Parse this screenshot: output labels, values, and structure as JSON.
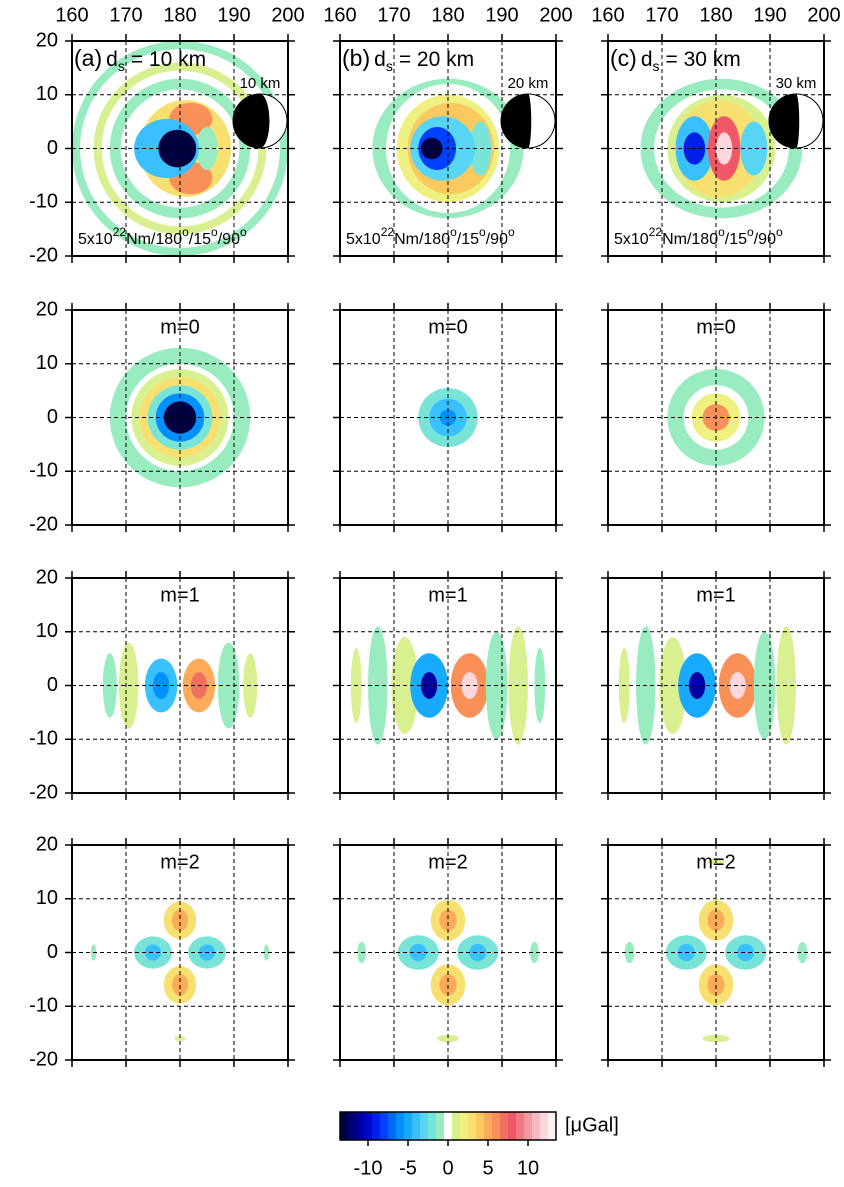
{
  "chart_data": [
    {
      "type": "heatmap",
      "label": "(a)",
      "title_var": "d",
      "title_sub": "s",
      "title_rest": "= 10 km",
      "depth_label": "10 km",
      "mechanism": [
        "5x10",
        "22",
        "Nm/180",
        "o",
        "/15",
        "o",
        "/90",
        "o"
      ],
      "xlim": [
        160,
        200
      ],
      "xticks": [
        160,
        170,
        180,
        190,
        200
      ],
      "ylim": [
        -20,
        20
      ],
      "yticks": [
        -20,
        -10,
        0,
        10,
        20
      ],
      "grid": true,
      "xtick_labels": true,
      "ytick_labels": true,
      "features": [
        {
          "x": 180,
          "y": 0,
          "rx": 20,
          "ry": 20,
          "value": -1
        },
        {
          "x": 180,
          "y": 0,
          "rx": 18.5,
          "ry": 18.5,
          "value": 0
        },
        {
          "x": 180,
          "y": 0,
          "rx": 16,
          "ry": 16,
          "value": 1
        },
        {
          "x": 180,
          "y": 0,
          "rx": 14.5,
          "ry": 14.5,
          "value": 0
        },
        {
          "x": 180,
          "y": 0,
          "rx": 13,
          "ry": 13,
          "value": -1
        },
        {
          "x": 180,
          "y": 0,
          "rx": 11,
          "ry": 11,
          "value": 0
        },
        {
          "x": 181,
          "y": 0,
          "rx": 8.5,
          "ry": 9,
          "value": 3
        },
        {
          "x": 182,
          "y": 5.5,
          "rx": 4,
          "ry": 3,
          "value": 6
        },
        {
          "x": 182,
          "y": -5.5,
          "rx": 4,
          "ry": 3,
          "value": 6
        },
        {
          "x": 185,
          "y": 0,
          "rx": 2,
          "ry": 4,
          "value": -1
        },
        {
          "x": 177.5,
          "y": 0,
          "rx": 6,
          "ry": 5.5,
          "value": -4
        },
        {
          "x": 179.5,
          "y": 0,
          "rx": 3.5,
          "ry": 3.5,
          "value": -13
        }
      ]
    },
    {
      "type": "heatmap",
      "label": "(b)",
      "title_var": "d",
      "title_sub": "s",
      "title_rest": "= 20 km",
      "depth_label": "20 km",
      "mechanism": [
        "5x10",
        "22",
        "Nm/180",
        "o",
        "/15",
        "o",
        "/90",
        "o"
      ],
      "xlim": [
        160,
        200
      ],
      "xticks": [
        160,
        170,
        180,
        190,
        200
      ],
      "ylim": [
        -20,
        20
      ],
      "yticks": [
        -20,
        -10,
        0,
        10,
        20
      ],
      "grid": true,
      "xtick_labels": true,
      "ytick_labels": false,
      "features": [
        {
          "x": 180,
          "y": 0,
          "rx": 14,
          "ry": 13,
          "value": -1
        },
        {
          "x": 180,
          "y": 0,
          "rx": 11.5,
          "ry": 12,
          "value": 0
        },
        {
          "x": 180,
          "y": 0,
          "rx": 9.5,
          "ry": 10,
          "value": 2
        },
        {
          "x": 180.5,
          "y": 0,
          "rx": 8,
          "ry": 8.5,
          "value": 4
        },
        {
          "x": 186,
          "y": 0,
          "rx": 2,
          "ry": 5,
          "value": -2
        },
        {
          "x": 179,
          "y": 0,
          "rx": 6,
          "ry": 6,
          "value": -3
        },
        {
          "x": 178,
          "y": 0,
          "rx": 3.5,
          "ry": 4,
          "value": -8
        },
        {
          "x": 177,
          "y": 0,
          "rx": 2,
          "ry": 2,
          "value": -13
        }
      ]
    },
    {
      "type": "heatmap",
      "label": "(c)",
      "title_var": "d",
      "title_sub": "s",
      "title_rest": "= 30 km",
      "depth_label": "30 km",
      "mechanism": [
        "5x10",
        "22",
        "Nm/180",
        "o",
        "/15",
        "o",
        "/90",
        "o"
      ],
      "xlim": [
        160,
        200
      ],
      "xticks": [
        160,
        170,
        180,
        190,
        200
      ],
      "ylim": [
        -20,
        20
      ],
      "yticks": [
        -20,
        -10,
        0,
        10,
        20
      ],
      "grid": true,
      "xtick_labels": true,
      "ytick_labels": false,
      "features": [
        {
          "x": 181,
          "y": 0,
          "rx": 15,
          "ry": 13,
          "value": -1
        },
        {
          "x": 181,
          "y": 0,
          "rx": 12.5,
          "ry": 11,
          "value": 0
        },
        {
          "x": 181,
          "y": 0,
          "rx": 10,
          "ry": 10,
          "value": 1
        },
        {
          "x": 180.5,
          "y": 0,
          "rx": 8,
          "ry": 9,
          "value": 3
        },
        {
          "x": 187,
          "y": 0,
          "rx": 2.5,
          "ry": 5,
          "value": -3
        },
        {
          "x": 176,
          "y": 0,
          "rx": 3.5,
          "ry": 6,
          "value": -4
        },
        {
          "x": 176,
          "y": 0,
          "rx": 2,
          "ry": 3,
          "value": -9
        },
        {
          "x": 181.5,
          "y": 0,
          "rx": 3,
          "ry": 6,
          "value": 8
        },
        {
          "x": 181.5,
          "y": 0,
          "rx": 1.5,
          "ry": 3,
          "value": 12
        }
      ]
    },
    {
      "type": "heatmap",
      "title": "m=0",
      "xlim": [
        160,
        200
      ],
      "xticks": [
        160,
        170,
        180,
        190,
        200
      ],
      "ylim": [
        -20,
        20
      ],
      "yticks": [
        -20,
        -10,
        0,
        10,
        20
      ],
      "grid": true,
      "xtick_labels": false,
      "ytick_labels": true,
      "features": [
        {
          "x": 180,
          "y": 0,
          "rx": 13,
          "ry": 13,
          "value": -1
        },
        {
          "x": 180,
          "y": 0,
          "rx": 10,
          "ry": 10,
          "value": 0
        },
        {
          "x": 180,
          "y": 0,
          "rx": 9,
          "ry": 9,
          "value": 1
        },
        {
          "x": 180,
          "y": 0,
          "rx": 7.5,
          "ry": 7.5,
          "value": 3
        },
        {
          "x": 180,
          "y": 0,
          "rx": 6,
          "ry": 6,
          "value": -2
        },
        {
          "x": 180,
          "y": 0,
          "rx": 4.5,
          "ry": 4.5,
          "value": -6
        },
        {
          "x": 180,
          "y": 0,
          "rx": 3,
          "ry": 3,
          "value": -13
        }
      ]
    },
    {
      "type": "heatmap",
      "title": "m=0",
      "xlim": [
        160,
        200
      ],
      "xticks": [
        160,
        170,
        180,
        190,
        200
      ],
      "ylim": [
        -20,
        20
      ],
      "yticks": [
        -20,
        -10,
        0,
        10,
        20
      ],
      "grid": true,
      "xtick_labels": false,
      "ytick_labels": false,
      "features": [
        {
          "x": 180,
          "y": 0,
          "rx": 5.5,
          "ry": 5.5,
          "value": -2
        },
        {
          "x": 180,
          "y": 0,
          "rx": 3.5,
          "ry": 3.5,
          "value": -4
        },
        {
          "x": 180,
          "y": 0,
          "rx": 1.5,
          "ry": 1.5,
          "value": -6
        }
      ]
    },
    {
      "type": "heatmap",
      "title": "m=0",
      "xlim": [
        160,
        200
      ],
      "xticks": [
        160,
        170,
        180,
        190,
        200
      ],
      "ylim": [
        -20,
        20
      ],
      "yticks": [
        -20,
        -10,
        0,
        10,
        20
      ],
      "grid": true,
      "xtick_labels": false,
      "ytick_labels": false,
      "features": [
        {
          "x": 180,
          "y": 0,
          "rx": 9,
          "ry": 9,
          "value": -1
        },
        {
          "x": 180,
          "y": 0,
          "rx": 6,
          "ry": 6,
          "value": 0
        },
        {
          "x": 180,
          "y": 0,
          "rx": 4.5,
          "ry": 4.5,
          "value": 2
        },
        {
          "x": 180,
          "y": 0,
          "rx": 2.5,
          "ry": 2.5,
          "value": 6
        }
      ]
    },
    {
      "type": "heatmap",
      "title": "m=1",
      "xlim": [
        160,
        200
      ],
      "xticks": [
        160,
        170,
        180,
        190,
        200
      ],
      "ylim": [
        -20,
        20
      ],
      "yticks": [
        -20,
        -10,
        0,
        10,
        20
      ],
      "grid": true,
      "xtick_labels": false,
      "ytick_labels": true,
      "features": [
        {
          "x": 167,
          "y": 0,
          "rx": 1.3,
          "ry": 6,
          "value": -1
        },
        {
          "x": 170.5,
          "y": 0,
          "rx": 1.8,
          "ry": 8,
          "value": 1
        },
        {
          "x": 176.5,
          "y": 0,
          "rx": 3,
          "ry": 5,
          "value": -4
        },
        {
          "x": 176.5,
          "y": 0,
          "rx": 1.5,
          "ry": 2.5,
          "value": -6
        },
        {
          "x": 183.5,
          "y": 0,
          "rx": 3,
          "ry": 5,
          "value": 5
        },
        {
          "x": 183.5,
          "y": 0,
          "rx": 1.5,
          "ry": 2.5,
          "value": 7
        },
        {
          "x": 189,
          "y": 0,
          "rx": 2,
          "ry": 8,
          "value": -1
        },
        {
          "x": 193,
          "y": 0,
          "rx": 1.3,
          "ry": 6,
          "value": 1
        }
      ]
    },
    {
      "type": "heatmap",
      "title": "m=1",
      "xlim": [
        160,
        200
      ],
      "xticks": [
        160,
        170,
        180,
        190,
        200
      ],
      "ylim": [
        -20,
        20
      ],
      "yticks": [
        -20,
        -10,
        0,
        10,
        20
      ],
      "grid": true,
      "xtick_labels": false,
      "ytick_labels": false,
      "features": [
        {
          "x": 163,
          "y": 0,
          "rx": 1,
          "ry": 7,
          "value": 1
        },
        {
          "x": 167,
          "y": 0,
          "rx": 1.8,
          "ry": 11,
          "value": -1
        },
        {
          "x": 172,
          "y": 0,
          "rx": 2.5,
          "ry": 9,
          "value": 1
        },
        {
          "x": 176.5,
          "y": 0,
          "rx": 3.5,
          "ry": 6,
          "value": -5
        },
        {
          "x": 176.5,
          "y": 0,
          "rx": 1.5,
          "ry": 2.5,
          "value": -11
        },
        {
          "x": 184,
          "y": 0,
          "rx": 3.5,
          "ry": 6,
          "value": 6
        },
        {
          "x": 184,
          "y": 0,
          "rx": 1.5,
          "ry": 2.5,
          "value": 12
        },
        {
          "x": 189,
          "y": 0,
          "rx": 2,
          "ry": 10,
          "value": -1
        },
        {
          "x": 193,
          "y": 0,
          "rx": 1.8,
          "ry": 11,
          "value": 1
        },
        {
          "x": 197,
          "y": 0,
          "rx": 1,
          "ry": 7,
          "value": -1
        }
      ]
    },
    {
      "type": "heatmap",
      "title": "m=1",
      "xlim": [
        160,
        200
      ],
      "xticks": [
        160,
        170,
        180,
        190,
        200
      ],
      "ylim": [
        -20,
        20
      ],
      "yticks": [
        -20,
        -10,
        0,
        10,
        20
      ],
      "grid": true,
      "xtick_labels": false,
      "ytick_labels": false,
      "features": [
        {
          "x": 163,
          "y": 0,
          "rx": 1,
          "ry": 7,
          "value": 1
        },
        {
          "x": 167,
          "y": 0,
          "rx": 1.8,
          "ry": 11,
          "value": -1
        },
        {
          "x": 172,
          "y": 0,
          "rx": 2.5,
          "ry": 9,
          "value": 1
        },
        {
          "x": 176.5,
          "y": 0,
          "rx": 3.5,
          "ry": 6,
          "value": -5
        },
        {
          "x": 176.5,
          "y": 0,
          "rx": 1.5,
          "ry": 2.5,
          "value": -11
        },
        {
          "x": 184,
          "y": 0,
          "rx": 3.5,
          "ry": 6,
          "value": 6
        },
        {
          "x": 184,
          "y": 0,
          "rx": 1.5,
          "ry": 2.5,
          "value": 12
        },
        {
          "x": 189,
          "y": 0,
          "rx": 2,
          "ry": 10,
          "value": -1
        },
        {
          "x": 193,
          "y": 0,
          "rx": 1.8,
          "ry": 11,
          "value": 1
        }
      ]
    },
    {
      "type": "heatmap",
      "title": "m=2",
      "xlim": [
        160,
        200
      ],
      "xticks": [
        160,
        170,
        180,
        190,
        200
      ],
      "ylim": [
        -20,
        20
      ],
      "yticks": [
        -20,
        -10,
        0,
        10,
        20
      ],
      "grid": true,
      "xtick_labels": false,
      "ytick_labels": true,
      "features": [
        {
          "x": 180,
          "y": 6,
          "rx": 3,
          "ry": 3.5,
          "value": 3
        },
        {
          "x": 180,
          "y": 6,
          "rx": 1.5,
          "ry": 2,
          "value": 5
        },
        {
          "x": 180,
          "y": -6,
          "rx": 3,
          "ry": 3.5,
          "value": 3
        },
        {
          "x": 180,
          "y": -6,
          "rx": 1.5,
          "ry": 2,
          "value": 5
        },
        {
          "x": 175,
          "y": 0,
          "rx": 3.5,
          "ry": 3,
          "value": -2
        },
        {
          "x": 175,
          "y": 0,
          "rx": 1.5,
          "ry": 1.5,
          "value": -4
        },
        {
          "x": 185,
          "y": 0,
          "rx": 3.5,
          "ry": 3,
          "value": -2
        },
        {
          "x": 185,
          "y": 0,
          "rx": 1.5,
          "ry": 1.5,
          "value": -4
        },
        {
          "x": 164,
          "y": 0,
          "rx": 0.5,
          "ry": 1.5,
          "value": -1
        },
        {
          "x": 196,
          "y": 0,
          "rx": 0.5,
          "ry": 1.5,
          "value": -1
        },
        {
          "x": 180,
          "y": -16,
          "rx": 1,
          "ry": 0.5,
          "value": 1
        }
      ]
    },
    {
      "type": "heatmap",
      "title": "m=2",
      "xlim": [
        160,
        200
      ],
      "xticks": [
        160,
        170,
        180,
        190,
        200
      ],
      "ylim": [
        -20,
        20
      ],
      "yticks": [
        -20,
        -10,
        0,
        10,
        20
      ],
      "grid": true,
      "xtick_labels": false,
      "ytick_labels": false,
      "features": [
        {
          "x": 180,
          "y": 6,
          "rx": 3.2,
          "ry": 3.8,
          "value": 3
        },
        {
          "x": 180,
          "y": 6,
          "rx": 1.6,
          "ry": 2,
          "value": 5
        },
        {
          "x": 180,
          "y": -6,
          "rx": 3.2,
          "ry": 3.8,
          "value": 3
        },
        {
          "x": 180,
          "y": -6,
          "rx": 1.6,
          "ry": 2,
          "value": 5
        },
        {
          "x": 174.5,
          "y": 0,
          "rx": 3.8,
          "ry": 3.2,
          "value": -2
        },
        {
          "x": 174.5,
          "y": 0,
          "rx": 1.6,
          "ry": 1.6,
          "value": -4
        },
        {
          "x": 185.5,
          "y": 0,
          "rx": 3.8,
          "ry": 3.2,
          "value": -2
        },
        {
          "x": 185.5,
          "y": 0,
          "rx": 1.6,
          "ry": 1.6,
          "value": -4
        },
        {
          "x": 164,
          "y": 0,
          "rx": 0.8,
          "ry": 2,
          "value": -1
        },
        {
          "x": 196,
          "y": 0,
          "rx": 0.8,
          "ry": 2,
          "value": -1
        },
        {
          "x": 180,
          "y": -16,
          "rx": 2,
          "ry": 0.7,
          "value": 1
        }
      ]
    },
    {
      "type": "heatmap",
      "title": "m=2",
      "xlim": [
        160,
        200
      ],
      "xticks": [
        160,
        170,
        180,
        190,
        200
      ],
      "ylim": [
        -20,
        20
      ],
      "yticks": [
        -20,
        -10,
        0,
        10,
        20
      ],
      "grid": true,
      "xtick_labels": false,
      "ytick_labels": false,
      "features": [
        {
          "x": 180,
          "y": 6,
          "rx": 3.2,
          "ry": 3.8,
          "value": 3
        },
        {
          "x": 180,
          "y": 6,
          "rx": 1.6,
          "ry": 2,
          "value": 5
        },
        {
          "x": 180,
          "y": -6,
          "rx": 3.2,
          "ry": 3.8,
          "value": 3
        },
        {
          "x": 180,
          "y": -6,
          "rx": 1.6,
          "ry": 2,
          "value": 5
        },
        {
          "x": 174.5,
          "y": 0,
          "rx": 3.8,
          "ry": 3.2,
          "value": -2
        },
        {
          "x": 174.5,
          "y": 0,
          "rx": 1.6,
          "ry": 1.6,
          "value": -4
        },
        {
          "x": 185.5,
          "y": 0,
          "rx": 3.8,
          "ry": 3.2,
          "value": -2
        },
        {
          "x": 185.5,
          "y": 0,
          "rx": 1.6,
          "ry": 1.6,
          "value": -4
        },
        {
          "x": 164,
          "y": 0,
          "rx": 0.9,
          "ry": 2,
          "value": -1
        },
        {
          "x": 196,
          "y": 0,
          "rx": 0.9,
          "ry": 2,
          "value": -1
        },
        {
          "x": 180,
          "y": -16,
          "rx": 2.5,
          "ry": 0.7,
          "value": 1
        },
        {
          "x": 180,
          "y": 17,
          "rx": 1.5,
          "ry": 0.6,
          "value": 1
        }
      ]
    }
  ],
  "colorbar": {
    "label": "[μGal]",
    "lim": [
      -13.5,
      13.5
    ],
    "ticks": [
      -10,
      -5,
      0,
      5,
      10
    ],
    "colors": [
      "#000040",
      "#000070",
      "#0000a0",
      "#0008c8",
      "#0020e8",
      "#0040ff",
      "#0068ff",
      "#0090ff",
      "#18aaff",
      "#38c0ff",
      "#58d4f4",
      "#78e4d8",
      "#98ecc0",
      "#ffffff",
      "#d8f090",
      "#eef080",
      "#f8e070",
      "#fcc860",
      "#fcac58",
      "#f89058",
      "#f07060",
      "#f05868",
      "#f07880",
      "#f498a0",
      "#f8b8c0",
      "#fcd8dc",
      "#fff0f2"
    ]
  }
}
